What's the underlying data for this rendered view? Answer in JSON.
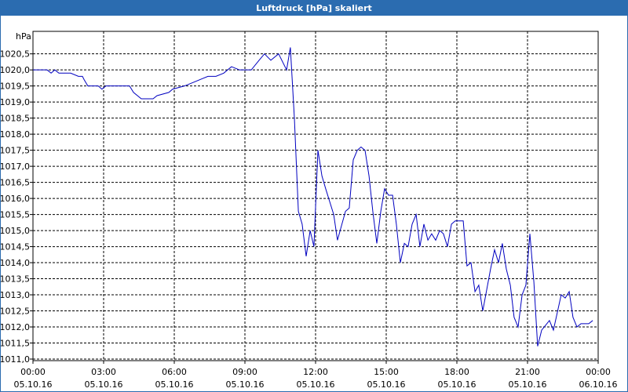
{
  "chart_data": {
    "type": "line",
    "title": "Luftdruck [hPa] skaliert",
    "y_unit": "hPa",
    "xlim": [
      0,
      24
    ],
    "ylim": [
      1011,
      1021.2
    ],
    "grid": true,
    "xticks": [
      {
        "value": 0,
        "label": "00:00"
      },
      {
        "value": 3,
        "label": "03:00"
      },
      {
        "value": 6,
        "label": "06:00"
      },
      {
        "value": 9,
        "label": "09:00"
      },
      {
        "value": 12,
        "label": "12:00"
      },
      {
        "value": 15,
        "label": "15:00"
      },
      {
        "value": 18,
        "label": "18:00"
      },
      {
        "value": 21,
        "label": "21:00"
      },
      {
        "value": 24,
        "label": "00:00"
      }
    ],
    "xtick_dates": [
      "05.10.16",
      "05.10.16",
      "05.10.16",
      "05.10.16",
      "05.10.16",
      "05.10.16",
      "05.10.16",
      "05.10.16",
      "06.10.16"
    ],
    "yticks": [
      {
        "value": 1011,
        "label": "1011,0"
      },
      {
        "value": 1011.5,
        "label": "1011,5"
      },
      {
        "value": 1012,
        "label": "1012,0"
      },
      {
        "value": 1012.5,
        "label": "1012,5"
      },
      {
        "value": 1013,
        "label": "1013,0"
      },
      {
        "value": 1013.5,
        "label": "1013,5"
      },
      {
        "value": 1014,
        "label": "1014,0"
      },
      {
        "value": 1014.5,
        "label": "1014,5"
      },
      {
        "value": 1015,
        "label": "1015,0"
      },
      {
        "value": 1015.5,
        "label": "1015,5"
      },
      {
        "value": 1016,
        "label": "1016,0"
      },
      {
        "value": 1016.5,
        "label": "1016,5"
      },
      {
        "value": 1017,
        "label": "1017,0"
      },
      {
        "value": 1017.5,
        "label": "1017,5"
      },
      {
        "value": 1018,
        "label": "1018,0"
      },
      {
        "value": 1018.5,
        "label": "1018,5"
      },
      {
        "value": 1019,
        "label": "1019,0"
      },
      {
        "value": 1019.5,
        "label": "1019,5"
      },
      {
        "value": 1020,
        "label": "1020,0"
      },
      {
        "value": 1020.5,
        "label": "1020,5"
      }
    ],
    "x": [
      0,
      0.6,
      0.77,
      0.93,
      1.1,
      1.6,
      1.93,
      2.1,
      2.17,
      2.33,
      2.77,
      2.93,
      3.1,
      4.1,
      4.27,
      4.6,
      5.1,
      5.27,
      5.77,
      5.93,
      6.43,
      6.77,
      7.1,
      7.43,
      7.77,
      8.1,
      8.43,
      8.77,
      9.27,
      9.6,
      9.83,
      10.1,
      10.43,
      10.77,
      10.93,
      11.1,
      11.27,
      11.43,
      11.6,
      11.77,
      11.93,
      12.1,
      12.27,
      12.43,
      12.77,
      12.93,
      13.27,
      13.43,
      13.6,
      13.77,
      13.93,
      14.1,
      14.27,
      14.43,
      14.6,
      14.77,
      14.93,
      15.1,
      15.27,
      15.43,
      15.6,
      15.77,
      15.93,
      16.1,
      16.27,
      16.43,
      16.6,
      16.77,
      16.93,
      17.1,
      17.27,
      17.43,
      17.6,
      17.77,
      17.93,
      18.27,
      18.43,
      18.6,
      18.77,
      18.93,
      19.1,
      19.43,
      19.6,
      19.77,
      19.93,
      20.1,
      20.27,
      20.43,
      20.6,
      20.77,
      20.93,
      21.1,
      21.27,
      21.43,
      21.6,
      21.93,
      22.1,
      22.43,
      22.6,
      22.77,
      22.93,
      23.1,
      23.27,
      23.6,
      23.77
    ],
    "series": [
      {
        "name": "Luftdruck",
        "color": "#0000c0",
        "values": [
          1020.0,
          1020.0,
          1019.9,
          1020.0,
          1019.9,
          1019.9,
          1019.8,
          1019.8,
          1019.7,
          1019.5,
          1019.5,
          1019.4,
          1019.5,
          1019.5,
          1019.3,
          1019.1,
          1019.1,
          1019.2,
          1019.3,
          1019.4,
          1019.5,
          1019.6,
          1019.7,
          1019.8,
          1019.8,
          1019.9,
          1020.1,
          1020.0,
          1020.0,
          1020.3,
          1020.5,
          1020.3,
          1020.5,
          1020.0,
          1020.7,
          1018.5,
          1015.6,
          1015.2,
          1014.2,
          1015.0,
          1014.5,
          1017.5,
          1016.7,
          1016.3,
          1015.5,
          1014.7,
          1015.6,
          1015.7,
          1017.2,
          1017.5,
          1017.6,
          1017.5,
          1016.7,
          1015.6,
          1014.6,
          1015.6,
          1016.3,
          1016.1,
          1016.1,
          1015.2,
          1014.0,
          1014.6,
          1014.5,
          1015.2,
          1015.5,
          1014.5,
          1015.2,
          1014.7,
          1014.9,
          1014.7,
          1015.0,
          1014.9,
          1014.5,
          1015.2,
          1015.3,
          1015.3,
          1013.9,
          1014.0,
          1013.1,
          1013.3,
          1012.5,
          1013.8,
          1014.4,
          1014.0,
          1014.6,
          1013.8,
          1013.3,
          1012.3,
          1012.0,
          1013.0,
          1013.3,
          1014.9,
          1013.4,
          1011.4,
          1011.9,
          1012.2,
          1011.9,
          1013.0,
          1012.9,
          1013.1,
          1012.3,
          1012.0,
          1012.1,
          1012.1,
          1012.2
        ]
      }
    ]
  }
}
